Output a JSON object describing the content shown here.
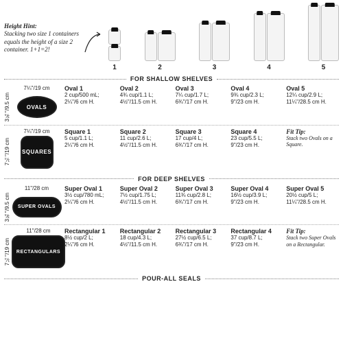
{
  "hint": {
    "title": "Height Hint:",
    "text": "Stacking two size 1 containers equals the height of a size 2 container. 1+1=2!"
  },
  "containerNumbers": [
    "1",
    "2",
    "3",
    "4",
    "5"
  ],
  "jars": {
    "widths_narrow": 18,
    "widths_wide": 26,
    "heights": {
      "s1": 22,
      "s2": 42,
      "s3": 56,
      "s4": 70,
      "s5": 82
    },
    "fill": "#f4f4f4",
    "border": "#bbbbbb",
    "lid": "#111111"
  },
  "sections": {
    "shallow": "FOR SHALLOW SHELVES",
    "deep": "FOR DEEP SHELVES",
    "pour": "POUR-ALL SEALS"
  },
  "cats": {
    "ovals": {
      "label": "OVALS",
      "dim_w": "7¼\"/19 cm",
      "dim_h": "3¾\"/9.5 cm",
      "items": [
        {
          "name": "Oval 1",
          "cap": "2 cup/500 mL;",
          "ht": "2¼\"/6 cm H."
        },
        {
          "name": "Oval 2",
          "cap": "4¾ cup/1.1 L;",
          "ht": "4½\"/11.5 cm H."
        },
        {
          "name": "Oval 3",
          "cap": "7¼ cup/1.7 L;",
          "ht": "6¾\"/17 cm H."
        },
        {
          "name": "Oval 4",
          "cap": "9¾ cup/2.3 L;",
          "ht": "9\"/23 cm H."
        },
        {
          "name": "Oval 5",
          "cap": "12¼ cup/2.9 L;",
          "ht": "11¼\"/28.5 cm H."
        }
      ]
    },
    "squares": {
      "label": "SQUARES",
      "dim_w": "7¼\"/19 cm",
      "dim_h": "7¼\"/19 cm",
      "items": [
        {
          "name": "Square 1",
          "cap": "5 cup/1.1 L;",
          "ht": "2¼\"/6 cm H."
        },
        {
          "name": "Square 2",
          "cap": "11 cup/2.6 L;",
          "ht": "4½\"/11.5 cm H."
        },
        {
          "name": "Square 3",
          "cap": "17 cup/4 L;",
          "ht": "6¾\"/17 cm H."
        },
        {
          "name": "Square 4",
          "cap": "23 cup/5.5 L;",
          "ht": "9\"/23 cm H."
        }
      ],
      "fit": {
        "title": "Fit Tip:",
        "text": "Stack two Ovals on a Square."
      }
    },
    "superovals": {
      "label": "SUPER OVALS",
      "dim_w": "11\"/28 cm",
      "dim_h": "3¾\"/9.5 cm",
      "items": [
        {
          "name": "Super Oval 1",
          "cap": "3½ cup/780 mL;",
          "ht": "2¼\"/6 cm H."
        },
        {
          "name": "Super Oval 2",
          "cap": "7½ cup/1.75 L;",
          "ht": "4½\"/11.5 cm H."
        },
        {
          "name": "Super Oval 3",
          "cap": "11¾ cup/2.8 L;",
          "ht": "6¾\"/17 cm H."
        },
        {
          "name": "Super Oval 4",
          "cap": "16½ cup/3.9 L;",
          "ht": "9\"/23 cm H."
        },
        {
          "name": "Super Oval 5",
          "cap": "20½ cup/5 L;",
          "ht": "11¼\"/28.5 cm H."
        }
      ]
    },
    "rects": {
      "label": "RECTANGULARS",
      "dim_w": "11\"/28 cm",
      "dim_h": "7¼\"/19 cm",
      "items": [
        {
          "name": "Rectangular 1",
          "cap": "8½ cup/2 L;",
          "ht": "2¼\"/6 cm H."
        },
        {
          "name": "Rectangular 2",
          "cap": "18 cup/4.3 L;",
          "ht": "4½\"/11.5 cm H."
        },
        {
          "name": "Rectangular 3",
          "cap": "27½ cup/6.5 L;",
          "ht": "6¾\"/17 cm H."
        },
        {
          "name": "Rectangular 4",
          "cap": "37 cup/8.7 L;",
          "ht": "9\"/23 cm H."
        }
      ],
      "fit": {
        "title": "Fit Tip:",
        "text": "Stack two Super Ovals on a Rectangular."
      }
    }
  }
}
